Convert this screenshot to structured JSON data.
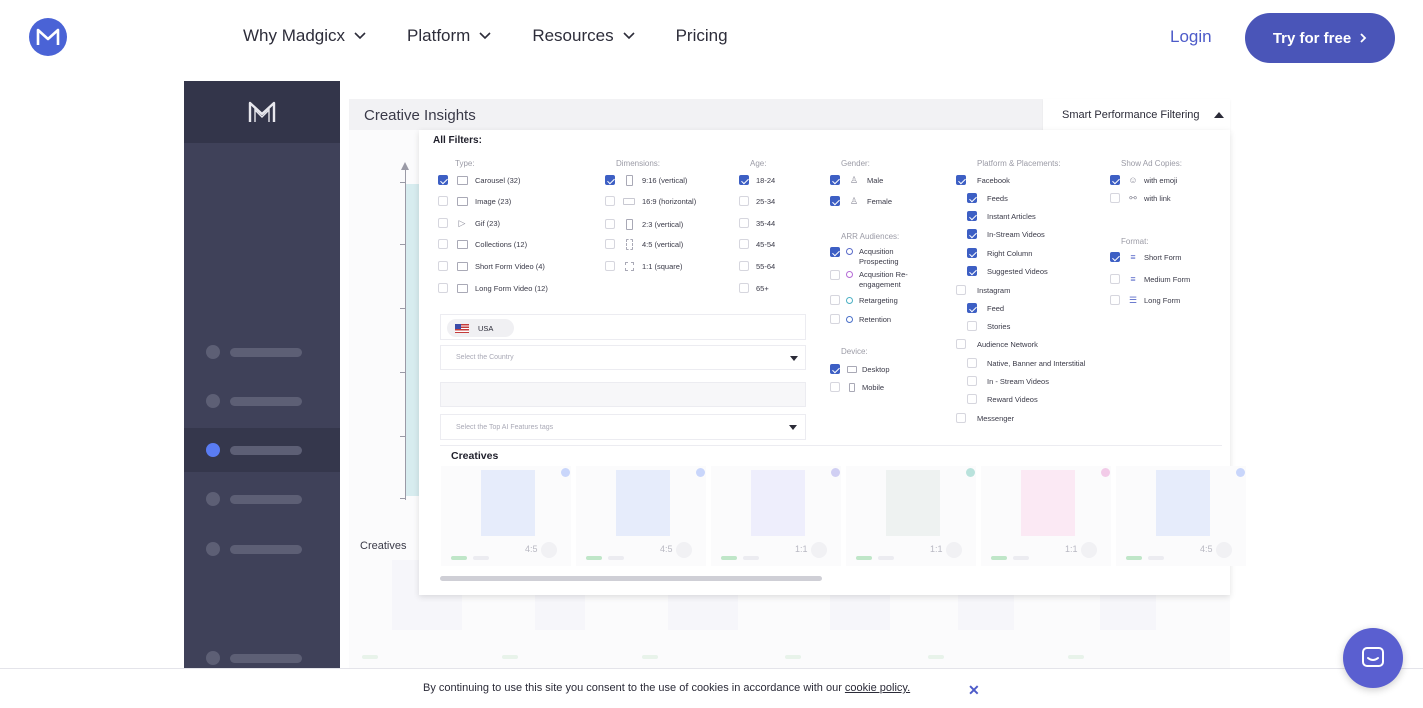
{
  "nav": {
    "links": [
      {
        "label": "Why Madgicx",
        "dropdown": true
      },
      {
        "label": "Platform",
        "dropdown": true
      },
      {
        "label": "Resources",
        "dropdown": true
      },
      {
        "label": "Pricing",
        "dropdown": false
      }
    ],
    "login_label": "Login",
    "cta_label": "Try for free",
    "brand_color": "#4a55b8"
  },
  "app": {
    "header_title": "Creative Insights",
    "filter_toggle_label": "Smart Performance Filtering",
    "all_filters_label": "All Filters:",
    "type": {
      "title": "Type:",
      "options": [
        {
          "label": "Carousel (32)",
          "checked": true,
          "icon": "carousel-icon"
        },
        {
          "label": "Image (23)",
          "checked": false,
          "icon": "image-icon"
        },
        {
          "label": "Gif (23)",
          "checked": false,
          "icon": "gif-play-icon"
        },
        {
          "label": "Collections (12)",
          "checked": false,
          "icon": "collection-icon"
        },
        {
          "label": "Short Form Video (4)",
          "checked": false,
          "icon": "video-icon"
        },
        {
          "label": "Long Form Video (12)",
          "checked": false,
          "icon": "long-video-icon"
        }
      ]
    },
    "dimensions": {
      "title": "Dimensions:",
      "options": [
        {
          "label": "9:16 (vertical)",
          "checked": true
        },
        {
          "label": "16:9 (horizontal)",
          "checked": false
        },
        {
          "label": "2:3 (vertical)",
          "checked": false
        },
        {
          "label": "4:5 (vertical)",
          "checked": false
        },
        {
          "label": "1:1 (square)",
          "checked": false
        }
      ]
    },
    "age": {
      "title": "Age:",
      "options": [
        {
          "label": "18-24",
          "checked": true
        },
        {
          "label": "25-34",
          "checked": false
        },
        {
          "label": "35-44",
          "checked": false
        },
        {
          "label": "45-54",
          "checked": false
        },
        {
          "label": "55-64",
          "checked": false
        },
        {
          "label": "65+",
          "checked": false
        }
      ]
    },
    "gender": {
      "title": "Gender:",
      "options": [
        {
          "label": "Male",
          "checked": true
        },
        {
          "label": "Female",
          "checked": true
        }
      ]
    },
    "arr": {
      "title": "ARR Audiences:",
      "options": [
        {
          "label": "Acqusition Prospecting",
          "checked": true
        },
        {
          "label": "Acqusition Re-engagement",
          "checked": false
        },
        {
          "label": "Retargeting",
          "checked": false
        },
        {
          "label": "Retention",
          "checked": false
        }
      ]
    },
    "device": {
      "title": "Device:",
      "options": [
        {
          "label": "Desktop",
          "checked": true
        },
        {
          "label": "Mobile",
          "checked": false
        }
      ]
    },
    "platform": {
      "title": "Platform & Placements:",
      "options": [
        {
          "label": "Facebook",
          "checked": true,
          "indent": false
        },
        {
          "label": "Feeds",
          "checked": true,
          "indent": true
        },
        {
          "label": "Instant Articles",
          "checked": true,
          "indent": true
        },
        {
          "label": "In-Stream Videos",
          "checked": true,
          "indent": true
        },
        {
          "label": "Right Column",
          "checked": true,
          "indent": true
        },
        {
          "label": "Suggested Videos",
          "checked": true,
          "indent": true
        },
        {
          "label": "Instagram",
          "checked": false,
          "indent": false
        },
        {
          "label": "Feed",
          "checked": true,
          "indent": true
        },
        {
          "label": "Stories",
          "checked": false,
          "indent": true
        },
        {
          "label": "Audience Network",
          "checked": false,
          "indent": false
        },
        {
          "label": "Native, Banner and Interstitial",
          "checked": false,
          "indent": true
        },
        {
          "label": "In - Stream Videos",
          "checked": false,
          "indent": true
        },
        {
          "label": "Reward Videos",
          "checked": false,
          "indent": true
        },
        {
          "label": "Messenger",
          "checked": false,
          "indent": false
        }
      ]
    },
    "ad_copies": {
      "title": "Show Ad Copies:",
      "options": [
        {
          "label": "with emoji",
          "checked": true
        },
        {
          "label": "with link",
          "checked": false
        }
      ]
    },
    "format": {
      "title": "Format:",
      "options": [
        {
          "label": "Short Form",
          "checked": true
        },
        {
          "label": "Medium Form",
          "checked": false
        },
        {
          "label": "Long Form",
          "checked": false
        }
      ]
    },
    "country_chip": "USA",
    "country_placeholder": "Select the Country",
    "ai_placeholder": "Select the Top AI Features tags",
    "creatives_title": "Creatives",
    "creatives_bg_label": "Creatives",
    "cards": [
      {
        "ratio": "4:5",
        "thumb": "#e6ecfb",
        "dot": "#c9d6fb"
      },
      {
        "ratio": "4:5",
        "thumb": "#e6ecfb",
        "dot": "#c9d6fb"
      },
      {
        "ratio": "1:1",
        "thumb": "#eeeefc",
        "dot": "#d0cff3"
      },
      {
        "ratio": "1:1",
        "thumb": "#eef2f1",
        "dot": "#b9e2dc"
      },
      {
        "ratio": "1:1",
        "thumb": "#fbe9f4",
        "dot": "#f2cbe8"
      },
      {
        "ratio": "4:5",
        "thumb": "#e6ecfb",
        "dot": "#c9d6fb"
      }
    ]
  },
  "cookie": {
    "text": "By continuing to use this site you consent to the use of cookies in accordance with our",
    "link": "cookie policy.",
    "close": "✕"
  }
}
